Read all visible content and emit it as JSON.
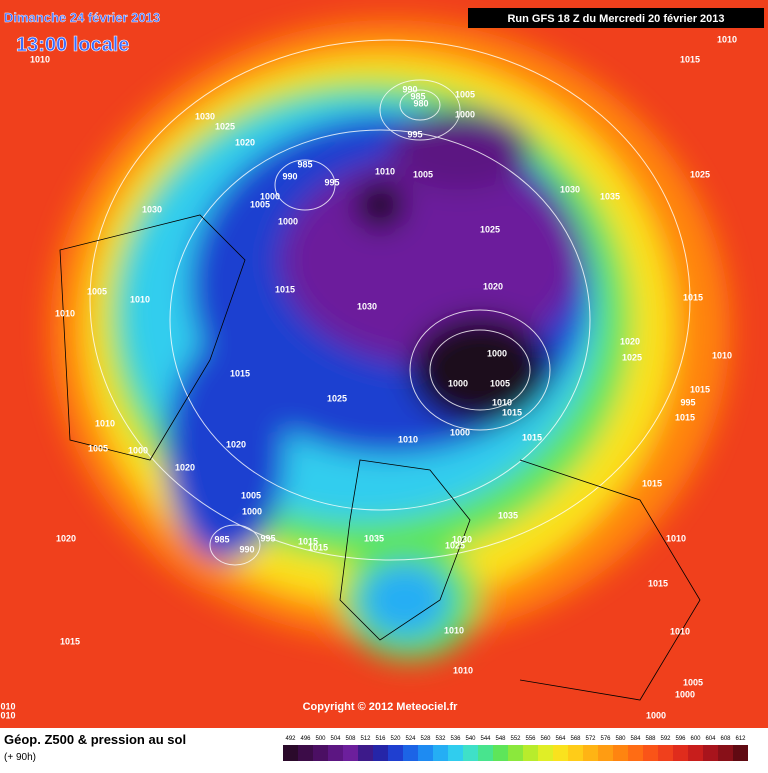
{
  "header": {
    "date": "Dimanche 24 février 2013",
    "time": "13:00 locale",
    "run": "Run GFS 18 Z du Mercredi 20 février 2013"
  },
  "copyright": "Copyright © 2012 Meteociel.fr",
  "legend": {
    "title": "Géop. Z500 & pression au sol",
    "lead": "(+ 90h)",
    "ticks": [
      492,
      496,
      500,
      504,
      508,
      512,
      516,
      520,
      524,
      528,
      532,
      536,
      540,
      544,
      548,
      552,
      556,
      560,
      564,
      568,
      572,
      576,
      580,
      584,
      588,
      592,
      596,
      600,
      604,
      608,
      612
    ],
    "colors": [
      "#2b0a2b",
      "#3c0c48",
      "#4b0f63",
      "#5c1682",
      "#6c1f9c",
      "#3d1a8a",
      "#2525a8",
      "#1f3fd0",
      "#1c64e6",
      "#1e8bf2",
      "#25aef4",
      "#30cdee",
      "#3fe0c8",
      "#48e48e",
      "#5ee55a",
      "#8be83c",
      "#b8ec2c",
      "#e0ee26",
      "#fae21e",
      "#ffcc18",
      "#ffb414",
      "#ff9c12",
      "#ff8410",
      "#ff6c14",
      "#fa5418",
      "#f0401c",
      "#e02c1c",
      "#c81e1c",
      "#a8141c",
      "#881018",
      "#600a12"
    ]
  },
  "isobar_labels": [
    "1010",
    "1010",
    "1015",
    "1030",
    "1025",
    "1020",
    "990",
    "985",
    "980",
    "1005",
    "1000",
    "995",
    "985",
    "990",
    "995",
    "1010",
    "1005",
    "1000",
    "1005",
    "1000",
    "1030",
    "1035",
    "1025",
    "1030",
    "1025",
    "1005",
    "1010",
    "1010",
    "1015",
    "1030",
    "1020",
    "1015",
    "1020",
    "1000",
    "1025",
    "1010",
    "1000",
    "1005",
    "1015",
    "1010",
    "1015",
    "995",
    "1015",
    "1015",
    "1025",
    "1010",
    "1005",
    "1000",
    "1000",
    "1010",
    "1015",
    "1020",
    "1020",
    "1015",
    "1005",
    "1000",
    "1035",
    "1020",
    "985",
    "990",
    "995",
    "1015",
    "1015",
    "1035",
    "1030",
    "1025",
    "1010",
    "1015",
    "1010",
    "1010",
    "1015",
    "1010",
    "1005",
    "1000",
    "1000",
    "010",
    "010"
  ]
}
